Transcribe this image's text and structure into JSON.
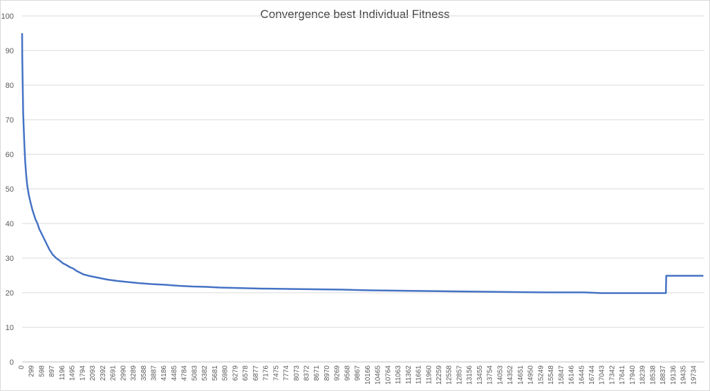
{
  "chart_data": {
    "type": "line",
    "title": "Convergence best Individual Fitness",
    "xlabel": "",
    "ylabel": "",
    "ylim": [
      0,
      100
    ],
    "yticks": [
      0,
      10,
      20,
      30,
      40,
      50,
      60,
      70,
      80,
      90,
      100
    ],
    "xlim": [
      0,
      20032
    ],
    "xtick_labels": [
      "0",
      "299",
      "598",
      "897",
      "1196",
      "1495",
      "1794",
      "2093",
      "2392",
      "2691",
      "2990",
      "3289",
      "3588",
      "3887",
      "4186",
      "4485",
      "4784",
      "5083",
      "5382",
      "5681",
      "5980",
      "6279",
      "6578",
      "6877",
      "7176",
      "7475",
      "7774",
      "8073",
      "8372",
      "8671",
      "8970",
      "9269",
      "9568",
      "9867",
      "10166",
      "10465",
      "10764",
      "11063",
      "11362",
      "11661",
      "11960",
      "12259",
      "12558",
      "12857",
      "13156",
      "13455",
      "13754",
      "14053",
      "14352",
      "14651",
      "14950",
      "15249",
      "15548",
      "15847",
      "16146",
      "16445",
      "16744",
      "17043",
      "17342",
      "17641",
      "17940",
      "18239",
      "18538",
      "18837",
      "19136",
      "19435",
      "19734"
    ],
    "grid": true,
    "legend": "none",
    "line_color": "#4472c4",
    "series": [
      {
        "x": [
          0,
          5,
          30,
          60,
          90,
          120,
          150,
          200,
          250,
          300,
          350,
          400,
          450,
          500,
          550,
          600,
          700,
          800,
          900,
          1000,
          1100,
          1200,
          1300,
          1400,
          1500,
          1600,
          1800,
          2000,
          2200,
          2500,
          2800,
          3100,
          3400,
          3800,
          4200,
          4600,
          5000,
          5400,
          5800,
          6200,
          7000,
          7800,
          8600,
          9400,
          10200,
          11000,
          11800,
          12600,
          13500,
          14400,
          15400,
          16500,
          17000,
          18000,
          18900,
          18910,
          20000
        ],
        "y": [
          95,
          88,
          72,
          64,
          58,
          54,
          51,
          48,
          46,
          44,
          42.5,
          41,
          40,
          38.5,
          37.5,
          36.5,
          34.5,
          32.5,
          31,
          30,
          29.3,
          28.5,
          28,
          27.4,
          27,
          26.3,
          25.3,
          24.8,
          24.4,
          23.8,
          23.4,
          23.1,
          22.8,
          22.5,
          22.3,
          22,
          21.8,
          21.7,
          21.5,
          21.4,
          21.2,
          21.1,
          21,
          20.9,
          20.7,
          20.6,
          20.5,
          20.4,
          20.3,
          20.2,
          20.1,
          20.1,
          19.9,
          19.9,
          19.9,
          24.9,
          24.9
        ]
      }
    ]
  }
}
